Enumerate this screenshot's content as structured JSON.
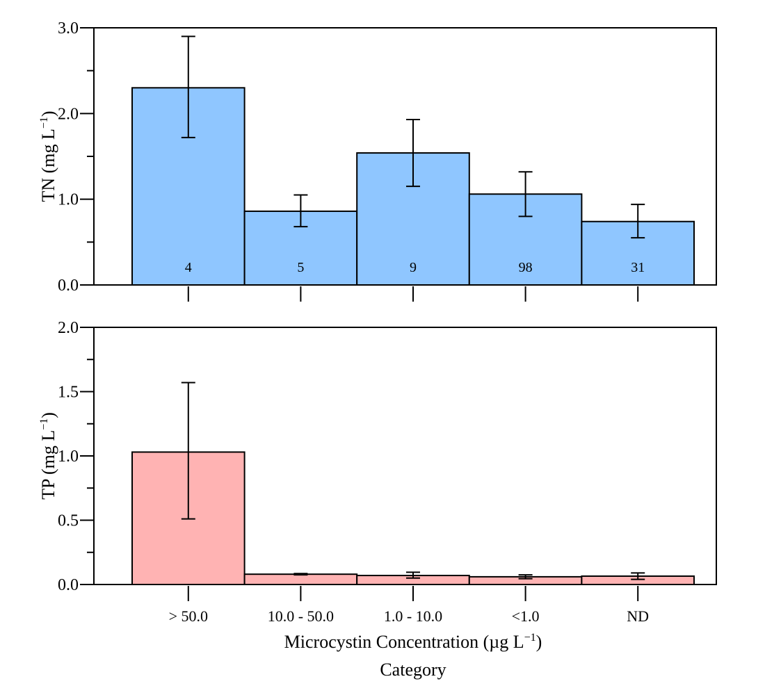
{
  "chart_data": [
    {
      "type": "bar",
      "id": "tn",
      "ylabel": {
        "main": "TN (mg L",
        "sup": "−1",
        "close": ")"
      },
      "ylim": [
        0,
        3.0
      ],
      "yticks_major": [
        0.0,
        1.0,
        2.0,
        3.0
      ],
      "ytick_labels": [
        "0.0",
        "1.0",
        "2.0",
        "3.0"
      ],
      "categories": [
        "> 50.0",
        "10.0 - 50.0",
        "1.0 - 10.0",
        "<1.0",
        "ND"
      ],
      "values": [
        2.3,
        0.86,
        1.54,
        1.06,
        0.74
      ],
      "error_low": [
        1.72,
        0.68,
        1.15,
        0.8,
        0.55
      ],
      "error_high": [
        2.9,
        1.05,
        1.93,
        1.32,
        0.94
      ],
      "counts": [
        "4",
        "5",
        "9",
        "98",
        "31"
      ],
      "color": "#8fc6ff"
    },
    {
      "type": "bar",
      "id": "tp",
      "ylabel": {
        "main": "TP (mg L",
        "sup": "−1",
        "close": ")"
      },
      "ylim": [
        0,
        2.0
      ],
      "yticks_major": [
        0.0,
        0.5,
        1.0,
        1.5,
        2.0
      ],
      "ytick_labels": [
        "0.0",
        "0.5",
        "1.0",
        "1.5",
        "2.0"
      ],
      "categories": [
        "> 50.0",
        "10.0 - 50.0",
        "1.0 - 10.0",
        "<1.0",
        "ND"
      ],
      "values": [
        1.03,
        0.08,
        0.07,
        0.06,
        0.065
      ],
      "error_low": [
        0.51,
        0.075,
        0.05,
        0.045,
        0.04
      ],
      "error_high": [
        1.57,
        0.085,
        0.095,
        0.075,
        0.09
      ],
      "color": "#ffb3b3"
    }
  ],
  "xlabel": {
    "main": "Microcystin Concentration (µg L",
    "sup": "−1",
    "close": ")"
  },
  "xlabel_line2": "Category"
}
